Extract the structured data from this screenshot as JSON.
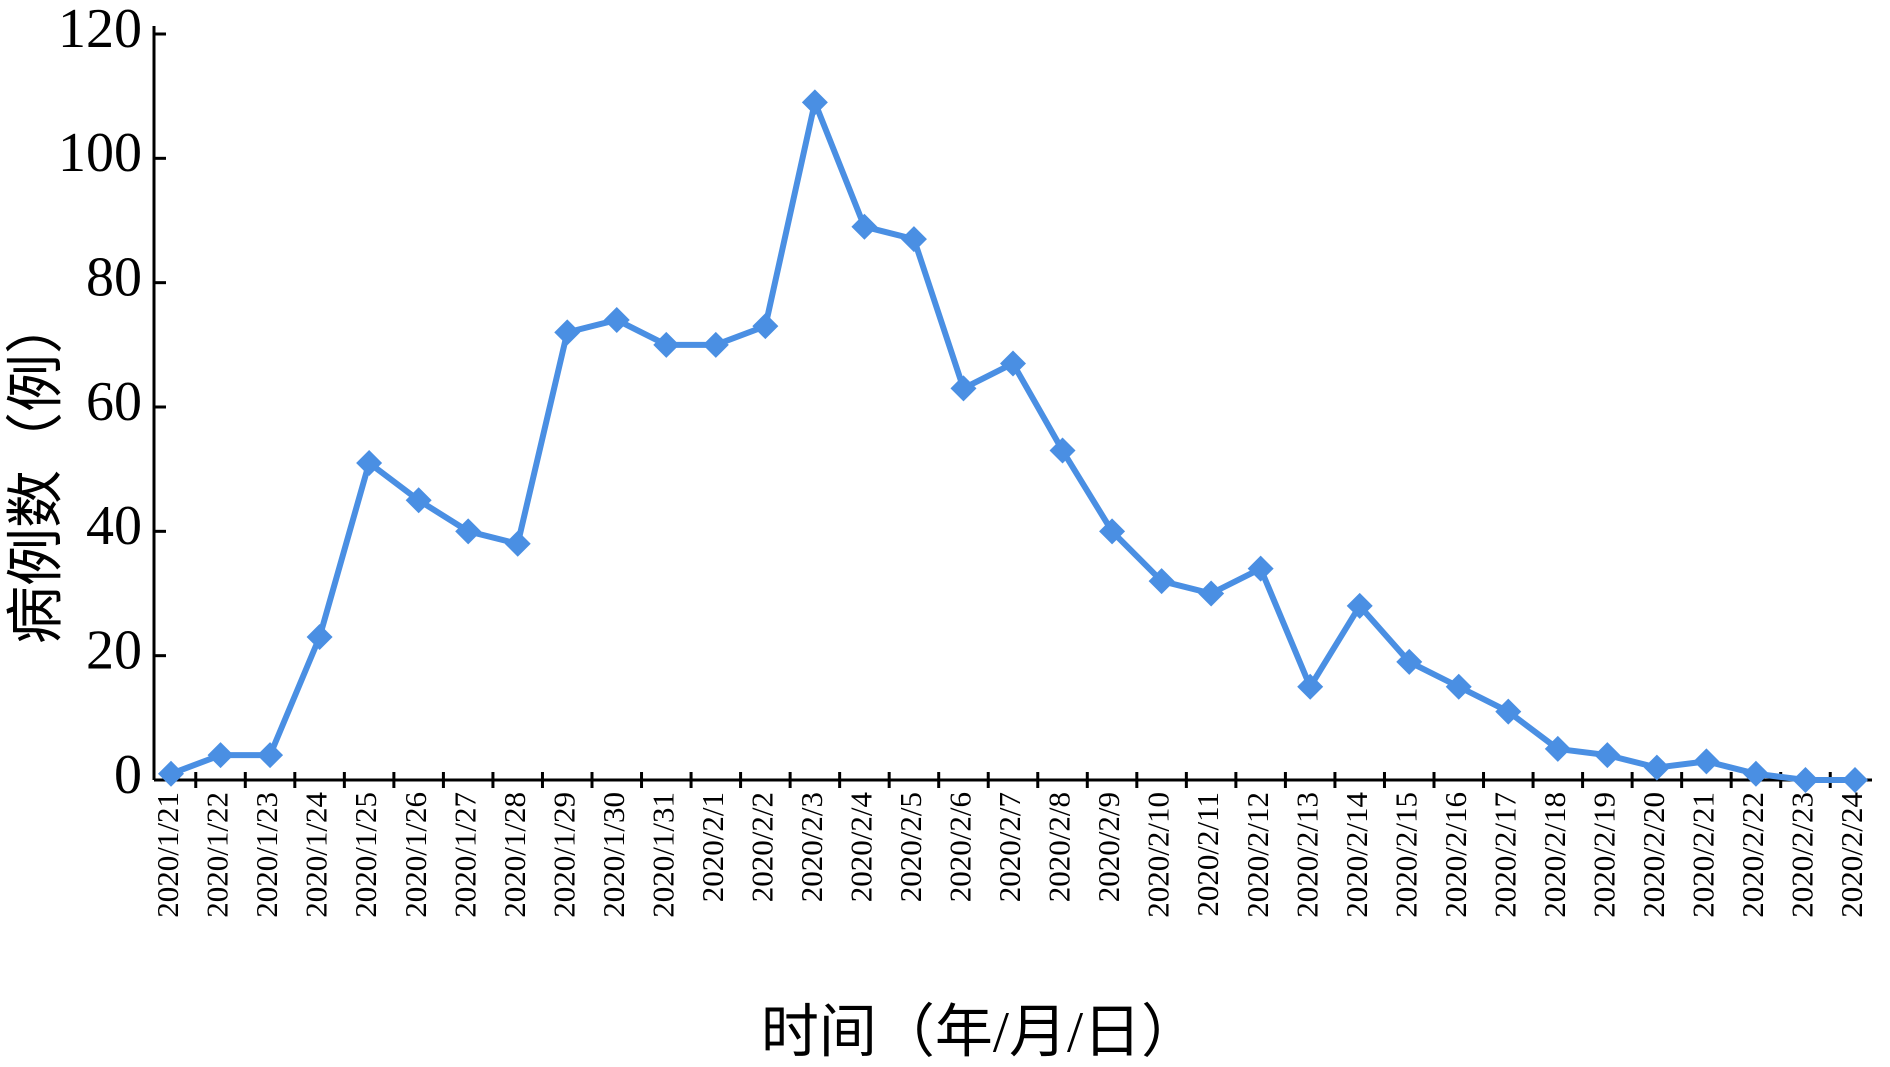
{
  "chart_data": {
    "type": "line",
    "x_label": "时间（年/月/日）",
    "y_label": "病例数（例）",
    "categories": [
      "2020/1/21",
      "2020/1/22",
      "2020/1/23",
      "2020/1/24",
      "2020/1/25",
      "2020/1/26",
      "2020/1/27",
      "2020/1/28",
      "2020/1/29",
      "2020/1/30",
      "2020/1/31",
      "2020/2/1",
      "2020/2/2",
      "2020/2/3",
      "2020/2/4",
      "2020/2/5",
      "2020/2/6",
      "2020/2/7",
      "2020/2/8",
      "2020/2/9",
      "2020/2/10",
      "2020/2/11",
      "2020/2/12",
      "2020/2/13",
      "2020/2/14",
      "2020/2/15",
      "2020/2/16",
      "2020/2/17",
      "2020/2/18",
      "2020/2/19",
      "2020/2/20",
      "2020/2/21",
      "2020/2/22",
      "2020/2/23",
      "2020/2/24"
    ],
    "values": [
      1,
      4,
      4,
      23,
      51,
      45,
      40,
      38,
      72,
      74,
      70,
      70,
      73,
      109,
      89,
      87,
      63,
      67,
      53,
      40,
      32,
      30,
      34,
      15,
      28,
      19,
      15,
      11,
      5,
      4,
      2,
      3,
      1,
      0,
      0
    ],
    "color": "#4a8fe3",
    "marker": "diamond",
    "ylim": [
      0,
      120
    ],
    "yticks": [
      0,
      20,
      40,
      60,
      80,
      100,
      120
    ],
    "grid": false
  }
}
